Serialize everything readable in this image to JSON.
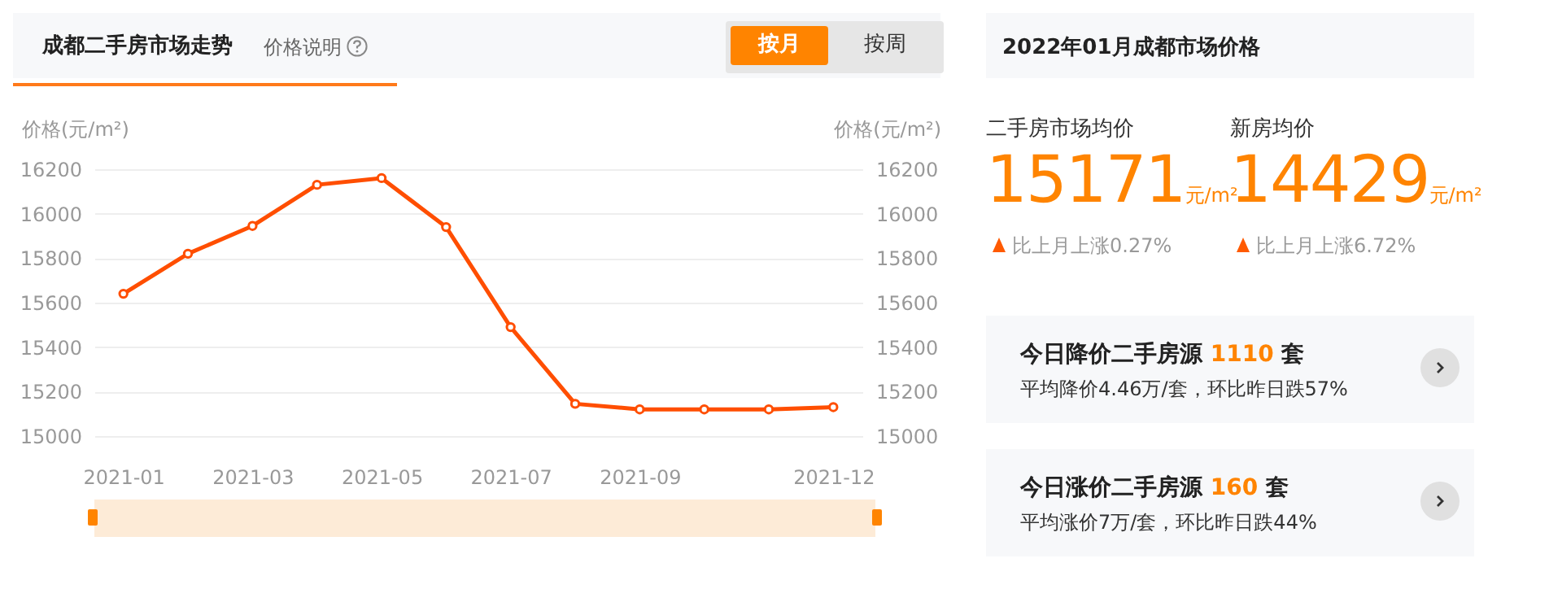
{
  "chart_data": [
    {
      "type": "line",
      "title": "成都二手房市场走势",
      "annotations": [
        "价格说明",
        "按月",
        "按周"
      ],
      "categories": [
        "2021-01",
        null,
        "2021-03",
        null,
        "2021-05",
        null,
        "2021-07",
        null,
        "2021-09",
        null,
        null,
        "2021-12"
      ],
      "series": [
        {
          "color": "#ff4e00",
          "values": [
            15640,
            15820,
            15945,
            16130,
            16160,
            15940,
            15490,
            15145,
            15120,
            15120,
            15120,
            15130
          ]
        }
      ],
      "ylabel": "价格(元/m²)",
      "y2label": "价格(元/m²)",
      "ylim": [
        15000,
        16200
      ],
      "yticks": [
        15000,
        15200,
        15400,
        15600,
        15800,
        16000,
        16200
      ],
      "y2lim": [
        15000,
        16200
      ],
      "y2ticks": [
        15000,
        15200,
        15400,
        15600,
        15800,
        16000,
        16200
      ],
      "grid": "y",
      "marker": "circle",
      "line_style": "solid"
    },
    {
      "type": "other",
      "title": "2022年01月成都市场价格",
      "annotations": [
        "二手房市场均价",
        "15171",
        "元/m²",
        "比上月上涨0.27%",
        "新房均价",
        "14429",
        "元/m²",
        "比上月上涨6.72%",
        "今日降价二手房源",
        "1110",
        "套",
        "平均降价4.46万/套，环比昨日跌57%",
        "今日涨价二手房源",
        "160",
        "套",
        "平均涨价7万/套，环比昨日跌44%"
      ]
    }
  ]
}
